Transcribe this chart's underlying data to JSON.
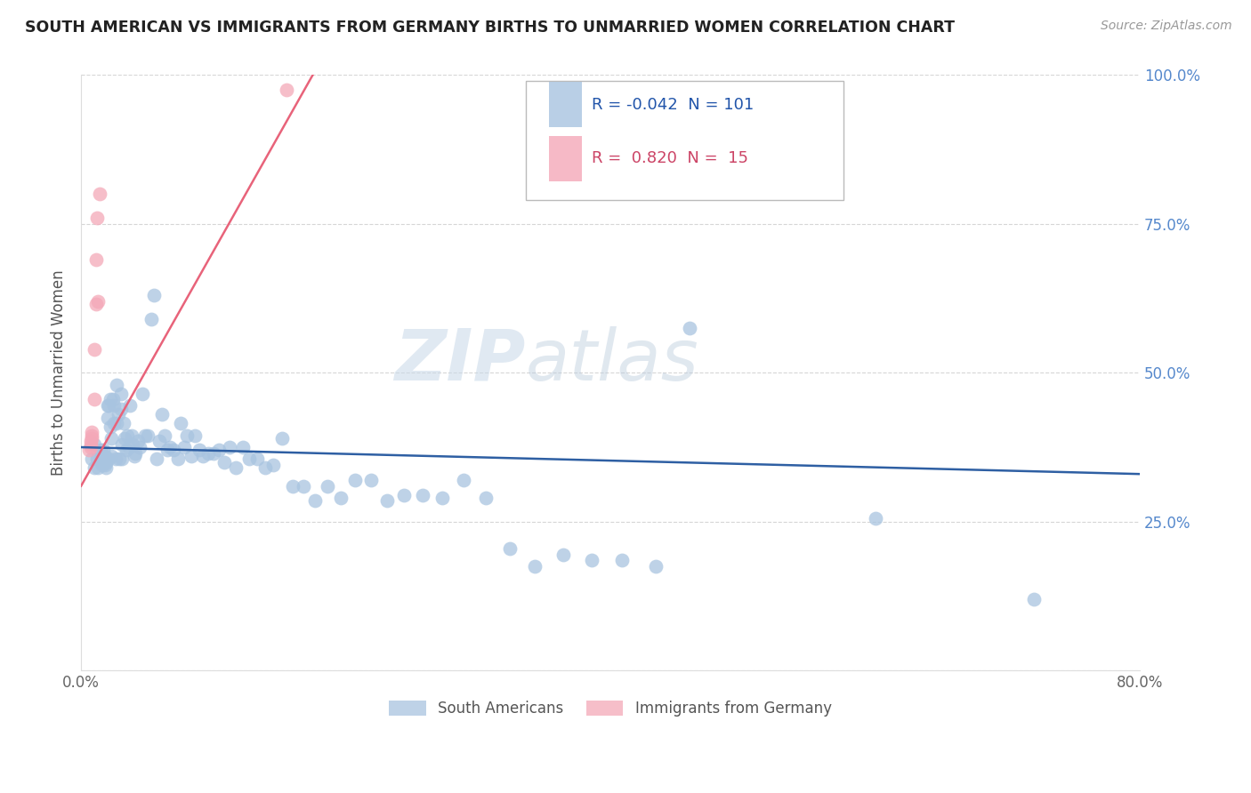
{
  "title": "SOUTH AMERICAN VS IMMIGRANTS FROM GERMANY BIRTHS TO UNMARRIED WOMEN CORRELATION CHART",
  "source": "Source: ZipAtlas.com",
  "ylabel": "Births to Unmarried Women",
  "xlim": [
    0.0,
    0.8
  ],
  "ylim": [
    0.0,
    1.0
  ],
  "blue_R": -0.042,
  "blue_N": 101,
  "pink_R": 0.82,
  "pink_N": 15,
  "blue_color": "#A8C4E0",
  "pink_color": "#F4A8B8",
  "blue_line_color": "#2E5FA3",
  "pink_line_color": "#E8637A",
  "watermark_zip": "ZIP",
  "watermark_atlas": "atlas",
  "legend_label_blue": "South Americans",
  "legend_label_pink": "Immigrants from Germany",
  "blue_scatter_x": [
    0.008,
    0.01,
    0.01,
    0.012,
    0.013,
    0.015,
    0.015,
    0.016,
    0.016,
    0.017,
    0.017,
    0.018,
    0.018,
    0.019,
    0.019,
    0.02,
    0.02,
    0.021,
    0.021,
    0.022,
    0.022,
    0.023,
    0.023,
    0.024,
    0.025,
    0.025,
    0.026,
    0.027,
    0.027,
    0.028,
    0.029,
    0.03,
    0.03,
    0.031,
    0.031,
    0.032,
    0.033,
    0.034,
    0.035,
    0.036,
    0.037,
    0.038,
    0.039,
    0.04,
    0.041,
    0.043,
    0.044,
    0.046,
    0.048,
    0.05,
    0.053,
    0.055,
    0.057,
    0.059,
    0.061,
    0.063,
    0.065,
    0.067,
    0.07,
    0.073,
    0.075,
    0.078,
    0.08,
    0.083,
    0.086,
    0.089,
    0.092,
    0.096,
    0.1,
    0.104,
    0.108,
    0.112,
    0.117,
    0.122,
    0.127,
    0.133,
    0.139,
    0.145,
    0.152,
    0.16,
    0.168,
    0.177,
    0.186,
    0.196,
    0.207,
    0.219,
    0.231,
    0.244,
    0.258,
    0.273,
    0.289,
    0.306,
    0.324,
    0.343,
    0.364,
    0.386,
    0.409,
    0.434,
    0.46,
    0.6,
    0.72
  ],
  "blue_scatter_y": [
    0.355,
    0.38,
    0.34,
    0.355,
    0.34,
    0.355,
    0.37,
    0.345,
    0.36,
    0.37,
    0.355,
    0.345,
    0.36,
    0.35,
    0.34,
    0.425,
    0.445,
    0.355,
    0.445,
    0.41,
    0.455,
    0.39,
    0.36,
    0.455,
    0.415,
    0.445,
    0.355,
    0.48,
    0.415,
    0.43,
    0.355,
    0.44,
    0.465,
    0.38,
    0.355,
    0.415,
    0.39,
    0.37,
    0.395,
    0.375,
    0.445,
    0.395,
    0.38,
    0.36,
    0.365,
    0.385,
    0.375,
    0.465,
    0.395,
    0.395,
    0.59,
    0.63,
    0.355,
    0.385,
    0.43,
    0.395,
    0.37,
    0.375,
    0.37,
    0.355,
    0.415,
    0.375,
    0.395,
    0.36,
    0.395,
    0.37,
    0.36,
    0.365,
    0.365,
    0.37,
    0.35,
    0.375,
    0.34,
    0.375,
    0.355,
    0.355,
    0.34,
    0.345,
    0.39,
    0.31,
    0.31,
    0.285,
    0.31,
    0.29,
    0.32,
    0.32,
    0.285,
    0.295,
    0.295,
    0.29,
    0.32,
    0.29,
    0.205,
    0.175,
    0.195,
    0.185,
    0.185,
    0.175,
    0.575,
    0.255,
    0.12
  ],
  "pink_scatter_x": [
    0.006,
    0.007,
    0.007,
    0.007,
    0.008,
    0.008,
    0.008,
    0.01,
    0.01,
    0.011,
    0.011,
    0.012,
    0.013,
    0.014,
    0.155
  ],
  "pink_scatter_y": [
    0.37,
    0.375,
    0.38,
    0.385,
    0.39,
    0.395,
    0.4,
    0.455,
    0.54,
    0.615,
    0.69,
    0.76,
    0.62,
    0.8,
    0.975
  ],
  "blue_line_x": [
    0.0,
    0.8
  ],
  "blue_line_y": [
    0.375,
    0.33
  ],
  "pink_line_x": [
    0.0,
    0.175
  ],
  "pink_line_y": [
    0.31,
    1.0
  ]
}
